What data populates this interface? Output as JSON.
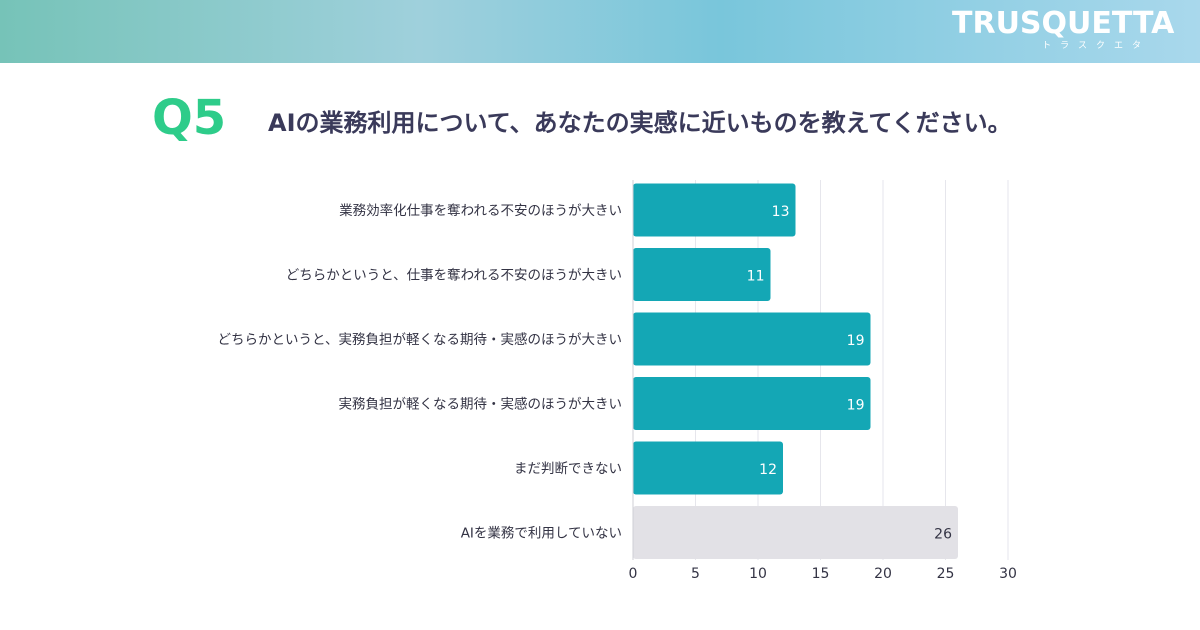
{
  "header": {
    "logo_text": "TRUSQUETTA",
    "logo_subtext": "トラスクエタ"
  },
  "question": {
    "number": "Q5",
    "text": "AIの業務利用について、あなたの実感に近いものを教えてください。"
  },
  "colors": {
    "bar": "#14a7b5",
    "bar_muted": "#e2e1e6",
    "question_number": "#2ecc8a",
    "title_text": "#3a3a5a"
  },
  "chart_data": {
    "type": "bar",
    "orientation": "horizontal",
    "categories": [
      "業務効率化仕事を奪われる不安のほうが大きい",
      "どちらかというと、仕事を奪われる不安のほうが大きい",
      "どちらかというと、実務負担が軽くなる期待・実感のほうが大きい",
      "実務負担が軽くなる期待・実感のほうが大きい",
      "まだ判断できない",
      "AIを業務で利用していない"
    ],
    "values": [
      13,
      11,
      19,
      19,
      12,
      26
    ],
    "muted": [
      false,
      false,
      false,
      false,
      false,
      true
    ],
    "data_labels": [
      "13",
      "11",
      "19",
      "19",
      "12",
      "26"
    ],
    "xlim": [
      0,
      30
    ],
    "xticks": [
      0,
      5,
      10,
      15,
      20,
      25,
      30
    ],
    "xtick_labels": [
      "0",
      "5",
      "10",
      "15",
      "20",
      "25",
      "30"
    ],
    "grid": true,
    "title": "",
    "xlabel": "",
    "ylabel": ""
  }
}
